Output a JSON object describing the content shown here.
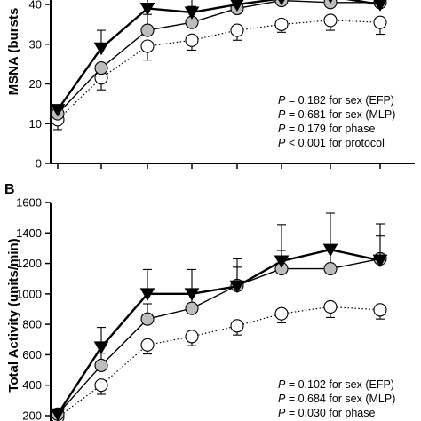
{
  "chart_data": [
    {
      "panel": "",
      "type": "line",
      "ylabel": "MSNA (bursts",
      "ylim": [
        0,
        45
      ],
      "yticks": [
        0,
        10,
        20,
        30,
        40
      ],
      "x": [
        1,
        2,
        3,
        4,
        5,
        6,
        7,
        8
      ],
      "series": [
        {
          "marker": "triangle-down",
          "color": "#000000",
          "line": "solid-thick",
          "values": [
            13.5,
            29,
            39,
            38,
            40,
            41.5,
            42,
            40
          ],
          "errors": [
            0,
            4.5,
            6,
            5,
            3,
            2,
            2,
            2
          ]
        },
        {
          "marker": "circle",
          "color": "#bdbdbd",
          "line": "solid",
          "values": [
            12.5,
            24,
            33.5,
            35.5,
            39,
            41,
            40.5,
            40.5
          ],
          "errors": [
            0,
            0,
            4,
            4,
            3,
            3,
            3,
            2.5
          ]
        },
        {
          "marker": "circle-open",
          "color": "#ffffff",
          "line": "dotted",
          "values": [
            11,
            21.5,
            29.5,
            31,
            33.5,
            35,
            36,
            35.5
          ],
          "errors": [
            2.5,
            3,
            3.5,
            2.5,
            2.5,
            2,
            2.5,
            3
          ]
        }
      ],
      "annotations": [
        {
          "italic": "P",
          "rest": " = 0.182 for sex (EFP)"
        },
        {
          "italic": "P",
          "rest": " = 0.681 for sex (MLP)"
        },
        {
          "italic": "P",
          "rest": " = 0.179 for phase"
        },
        {
          "italic": "P",
          "rest": " < 0.001 for protocol"
        }
      ]
    },
    {
      "panel": "B",
      "type": "line",
      "ylabel": "Total Activity (units/min)",
      "ylim": [
        200,
        1600
      ],
      "yticks": [
        200,
        400,
        600,
        800,
        1000,
        1200,
        1400,
        1600
      ],
      "x": [
        1,
        2,
        3,
        4,
        5,
        6,
        7,
        8
      ],
      "series": [
        {
          "marker": "triangle-down",
          "color": "#000000",
          "line": "solid-thick",
          "values": [
            210,
            650,
            1000,
            1000,
            1050,
            1215,
            1290,
            1220
          ],
          "errors": [
            20,
            130,
            160,
            160,
            180,
            240,
            240,
            240
          ]
        },
        {
          "marker": "circle",
          "color": "#bdbdbd",
          "line": "solid",
          "values": [
            210,
            530,
            835,
            905,
            1055,
            1165,
            1165,
            1230
          ],
          "errors": [
            20,
            80,
            100,
            110,
            120,
            120,
            120,
            150
          ]
        },
        {
          "marker": "circle-open",
          "color": "#ffffff",
          "line": "dotted",
          "values": [
            190,
            400,
            665,
            720,
            790,
            870,
            915,
            895
          ],
          "errors": [
            20,
            60,
            60,
            60,
            60,
            60,
            70,
            60
          ]
        }
      ],
      "annotations": [
        {
          "italic": "P",
          "rest": " = 0.102 for sex (EFP)"
        },
        {
          "italic": "P",
          "rest": " = 0.684 for sex (MLP)"
        },
        {
          "italic": "P",
          "rest": " = 0.030 for phase"
        }
      ]
    }
  ]
}
